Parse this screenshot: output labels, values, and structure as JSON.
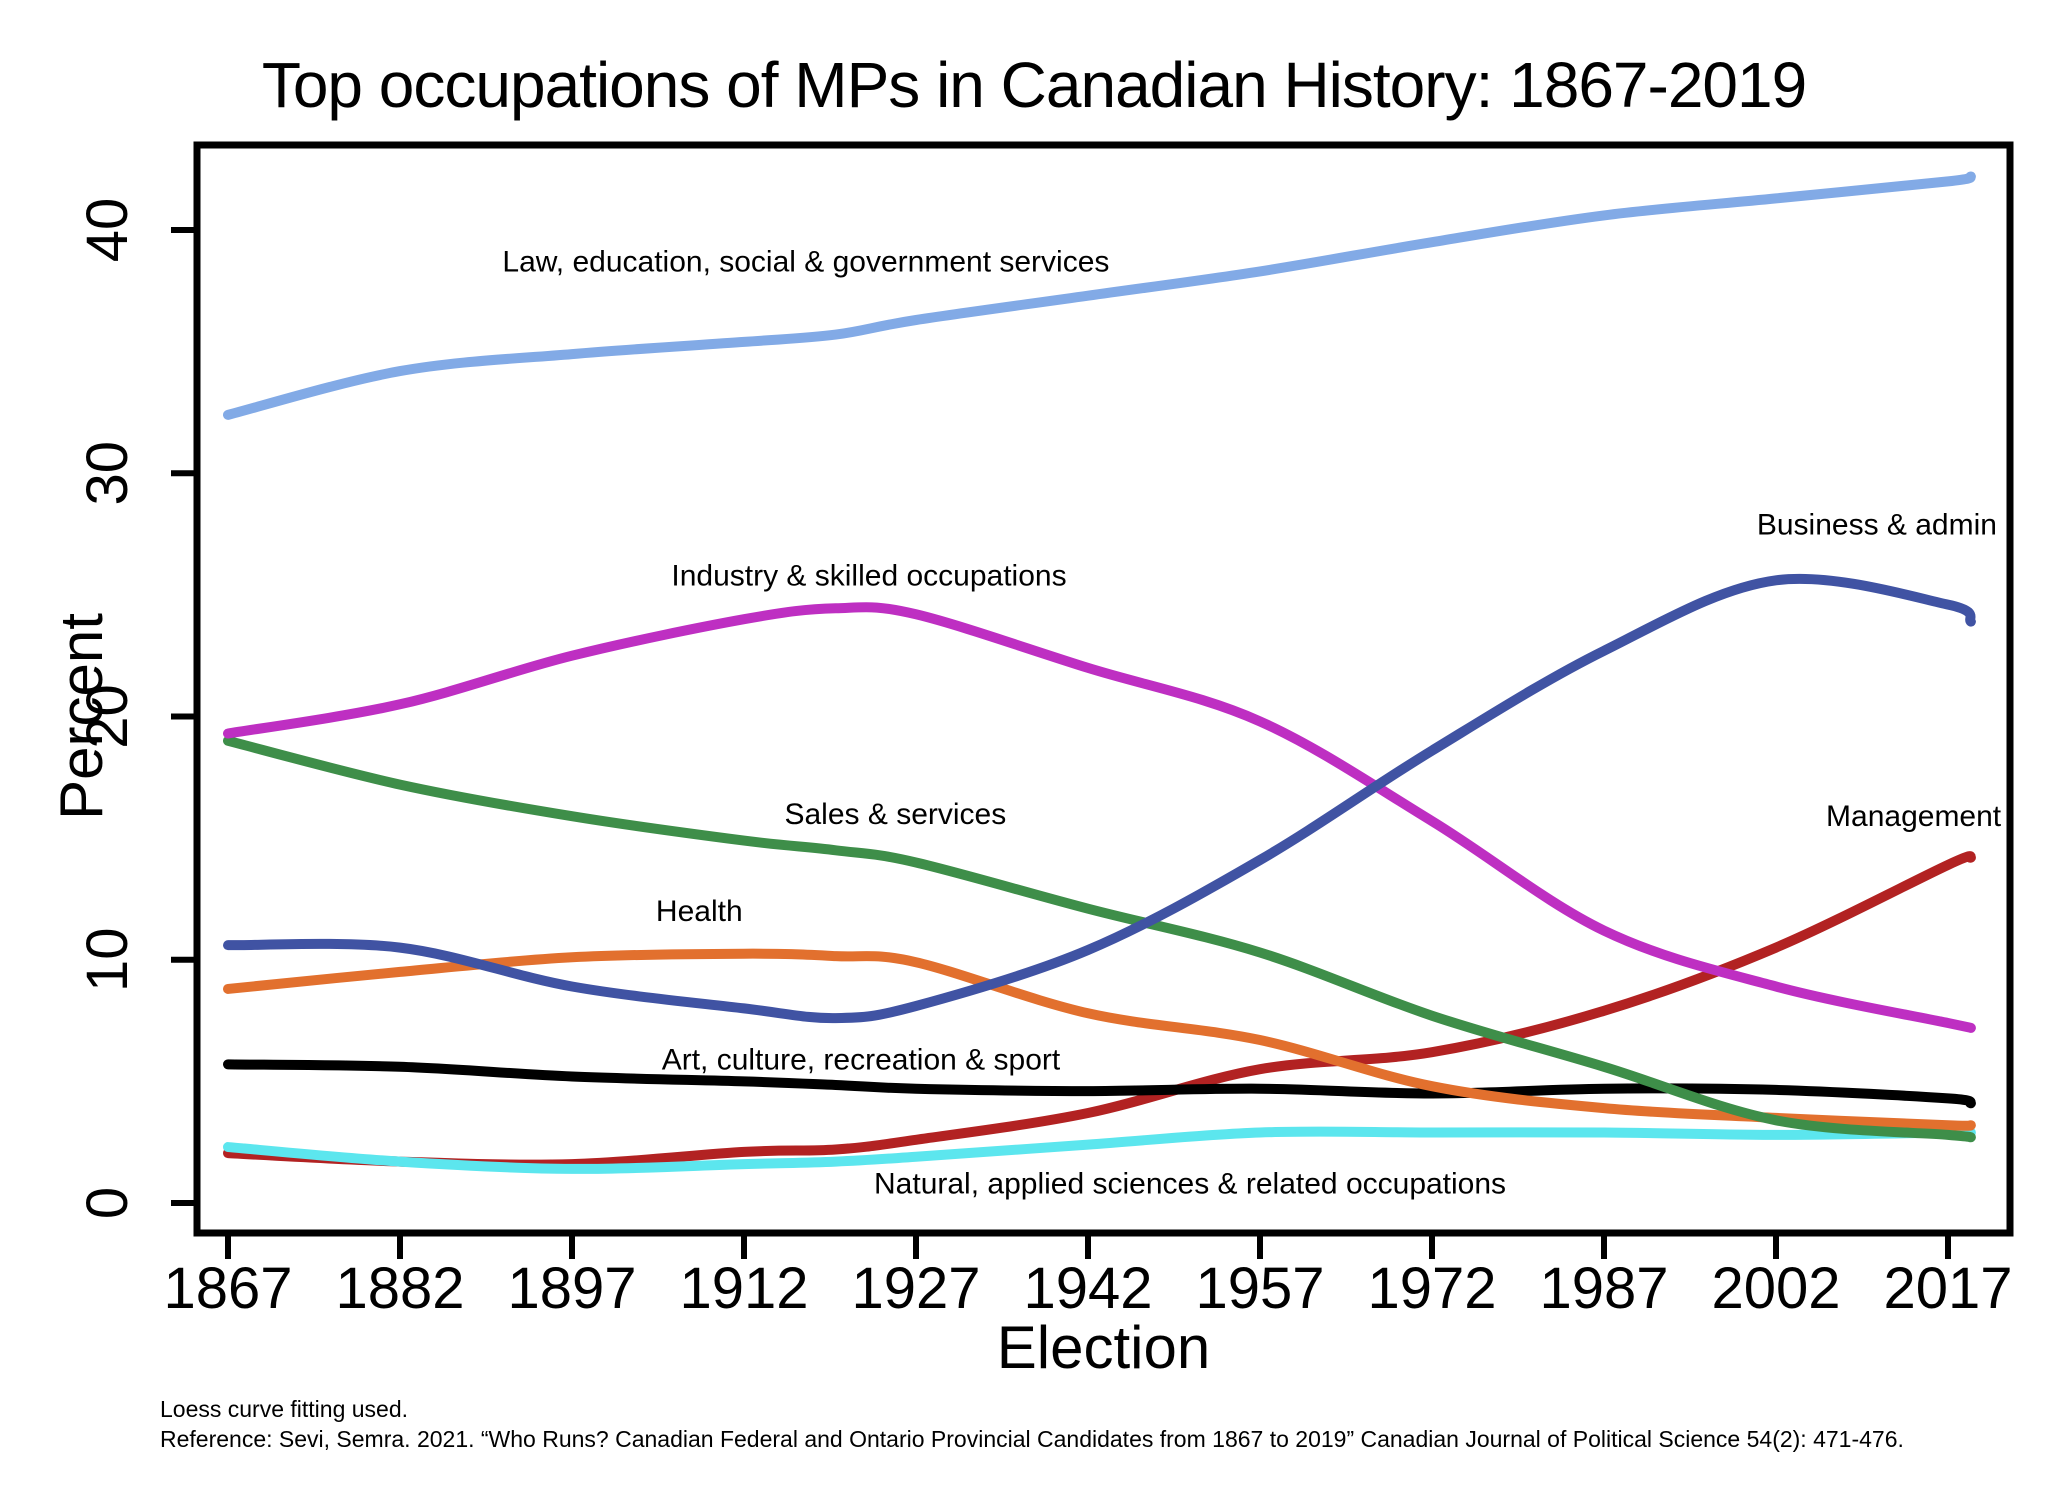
{
  "title": "Top occupations of MPs in Canadian History: 1867-2019",
  "footnotes": {
    "line1": "Loess curve fitting used.",
    "line2": "Reference: Sevi, Semra. 2021. “Who Runs? Canadian Federal and Ontario Provincial Candidates from 1867 to 2019” Canadian Journal of Political Science 54(2): 471-476."
  },
  "chart_data": {
    "type": "line",
    "title": "Top occupations of MPs in Canadian History: 1867-2019",
    "xlabel": "Election",
    "ylabel": "Percent",
    "grid": false,
    "legend": "inline-annotations",
    "x_ticks": [
      1867,
      1882,
      1897,
      1912,
      1927,
      1942,
      1957,
      1972,
      1987,
      2002,
      2017
    ],
    "y_ticks": [
      0,
      10,
      20,
      30,
      40
    ],
    "xlim": [
      1864,
      2022
    ],
    "ylim": [
      -1.2,
      43.5
    ],
    "x": [
      1867,
      1882,
      1897,
      1912,
      1920,
      1927,
      1942,
      1957,
      1972,
      1987,
      2002,
      2017,
      2019
    ],
    "series": [
      {
        "name": "Management",
        "color": "#b22222",
        "values": [
          2.05,
          1.7,
          1.6,
          2.1,
          2.2,
          2.6,
          3.7,
          5.5,
          6.2,
          7.9,
          10.5,
          13.9,
          14.2
        ]
      },
      {
        "name": "Natural, applied sciences & related occupations",
        "color": "#5ce6ee",
        "values": [
          2.3,
          1.7,
          1.4,
          1.6,
          1.7,
          1.9,
          2.4,
          2.9,
          2.9,
          2.9,
          2.8,
          2.9,
          2.9
        ]
      },
      {
        "name": "Art, culture, recreation & sport",
        "color": "#000000",
        "values": [
          5.7,
          5.6,
          5.2,
          5.0,
          4.85,
          4.7,
          4.6,
          4.7,
          4.5,
          4.7,
          4.65,
          4.3,
          4.1
        ]
      },
      {
        "name": "Health",
        "color": "#e2702e",
        "values": [
          8.8,
          9.5,
          10.1,
          10.25,
          10.15,
          9.9,
          7.8,
          6.7,
          4.8,
          3.9,
          3.5,
          3.2,
          3.2
        ]
      },
      {
        "name": "Sales & services",
        "color": "#3e8e49",
        "values": [
          19.0,
          17.2,
          15.9,
          14.9,
          14.5,
          14.0,
          12.1,
          10.3,
          7.7,
          5.6,
          3.4,
          2.8,
          2.7
        ]
      },
      {
        "name": "Industry & skilled occupations",
        "color": "#be2fc2",
        "values": [
          19.3,
          20.5,
          22.5,
          24.0,
          24.45,
          24.2,
          22.0,
          19.8,
          15.7,
          11.2,
          8.9,
          7.4,
          7.2
        ]
      },
      {
        "name": "Business & admin",
        "color": "#4053a3",
        "values": [
          10.6,
          10.5,
          8.9,
          8.0,
          7.6,
          8.1,
          10.4,
          14.1,
          18.6,
          22.7,
          25.6,
          24.6,
          23.9
        ]
      },
      {
        "name": "Law, education, social & government services",
        "color": "#82aae6",
        "values": [
          32.4,
          34.2,
          34.9,
          35.4,
          35.7,
          36.3,
          37.3,
          38.3,
          39.5,
          40.6,
          41.3,
          42.0,
          42.2
        ]
      }
    ],
    "annotations": [
      {
        "text": "Law, education, social & government services",
        "year": 1917.4,
        "value": 38.7
      },
      {
        "text": "Industry & skilled occupations",
        "year": 1922.9,
        "value": 25.8
      },
      {
        "text": "Sales & services",
        "year": 1925.2,
        "value": 16.0
      },
      {
        "text": "Health",
        "year": 1908.1,
        "value": 12.0
      },
      {
        "text": "Business & admin",
        "year": 2010.8,
        "value": 27.9
      },
      {
        "text": "Management",
        "year": 2014.0,
        "value": 15.9
      },
      {
        "text": "Art, culture, recreation & sport",
        "year": 1922.2,
        "value": 5.9
      },
      {
        "text": "Natural, applied sciences & related occupations",
        "year": 1950.9,
        "value": 0.8
      }
    ]
  }
}
